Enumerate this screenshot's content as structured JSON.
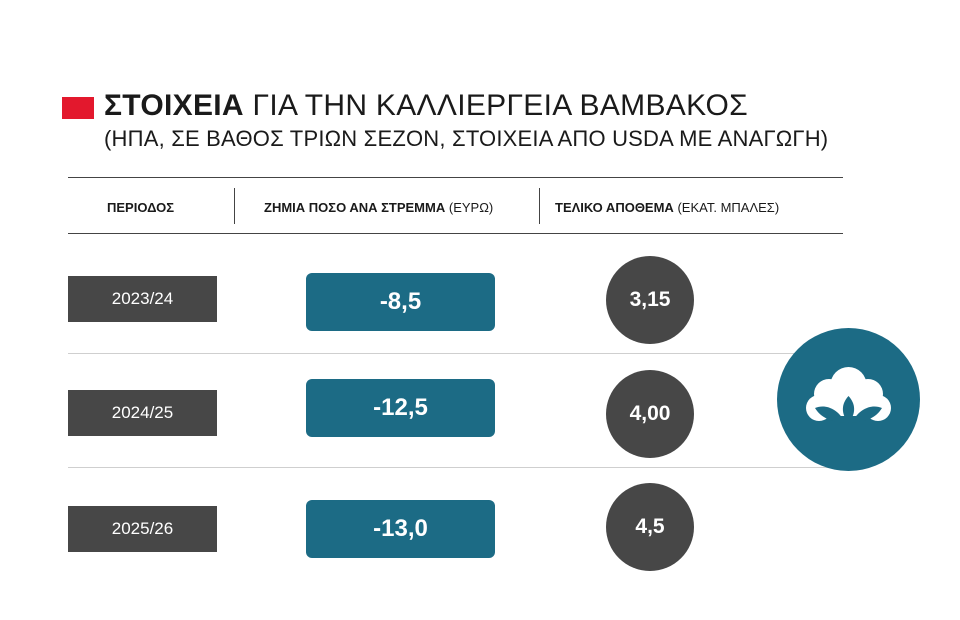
{
  "title": {
    "bold": "ΣΤΟΙΧΕΙΑ",
    "rest": "ΓΙΑ ΤΗΝ ΚΑΛΛΙΕΡΓΕΙΑ ΒΑΜΒΑΚΟΣ",
    "subtitle": "(ΗΠΑ, ΣΕ ΒΑΘΟΣ ΤΡΙΩΝ ΣΕΖΟΝ, ΣΤΟΙΧΕΙΑ ΑΠΟ USDA ΜΕ ΑΝΑΓΩΓΗ)"
  },
  "headers": {
    "period": "ΠΕΡΙΟΔΟΣ",
    "loss_label": "ΖΗΜΙΑ ΠΟΣΟ ΑΝΑ ΣΤΡΕΜΜΑ",
    "loss_unit": "(ΕΥΡΩ)",
    "stock_label": "ΤΕΛΙΚΟ ΑΠΟΘΕΜΑ",
    "stock_unit": "(ΕΚΑΤ. ΜΠΑΛΕΣ)"
  },
  "colors": {
    "accent_red": "#e3182d",
    "teal": "#1c6b85",
    "dark_gray": "#474747"
  },
  "icons": {
    "cotton": "cotton-boll-icon"
  },
  "chart_data": {
    "type": "table",
    "columns": [
      "ΠΕΡΙΟΔΟΣ",
      "ΖΗΜΙΑ ΠΟΣΟ ΑΝΑ ΣΤΡΕΜΜΑ (ΕΥΡΩ)",
      "ΤΕΛΙΚΟ ΑΠΟΘΕΜΑ (ΕΚΑΤ. ΜΠΑΛΕΣ)"
    ],
    "rows": [
      {
        "period": "2023/24",
        "loss_text": "-8,5",
        "loss": -8.5,
        "stock_text": "3,15",
        "stock": 3.15
      },
      {
        "period": "2024/25",
        "loss_text": "-12,5",
        "loss": -12.5,
        "stock_text": "4,00",
        "stock": 4.0
      },
      {
        "period": "2025/26",
        "loss_text": "-13,0",
        "loss": -13.0,
        "stock_text": "4,5",
        "stock": 4.5
      }
    ]
  }
}
